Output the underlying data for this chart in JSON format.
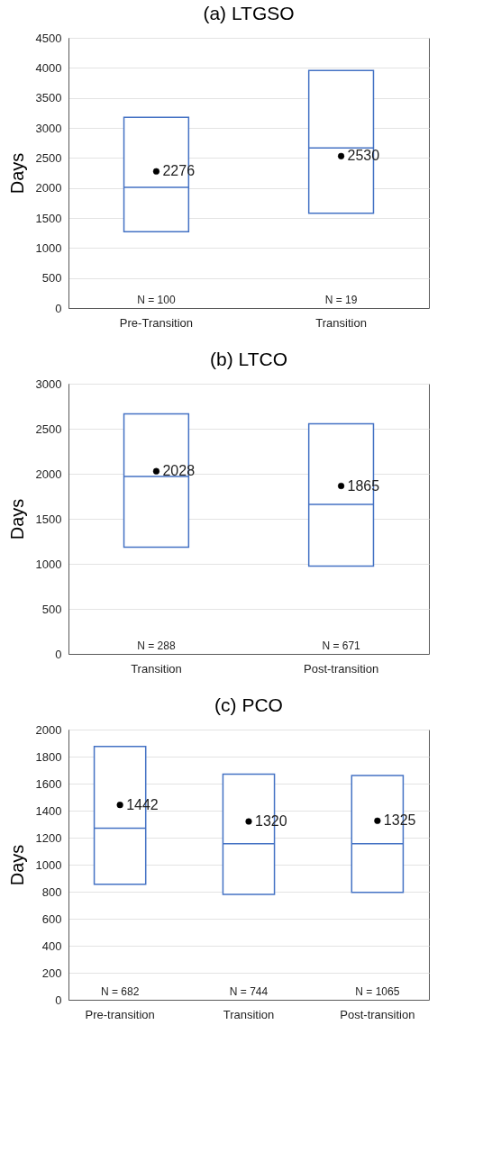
{
  "chart_data": [
    {
      "type": "box",
      "title": "(a) LTGSO",
      "ylabel": "Days",
      "categories": [
        "Pre-Transition",
        "Transition"
      ],
      "ylim": [
        0,
        4500
      ],
      "yticks": [
        0,
        500,
        1000,
        1500,
        2000,
        2500,
        3000,
        3500,
        4000,
        4500
      ],
      "grid": "y",
      "data_labels": true,
      "series": [
        {
          "type": "box",
          "color": "#4472c4",
          "boxes": [
            {
              "low": 1270,
              "q1": 1270,
              "median": 2010,
              "q3": 3175,
              "high": 3175
            },
            {
              "low": 1580,
              "q1": 1580,
              "median": 2665,
              "q3": 3955,
              "high": 3955
            }
          ]
        },
        {
          "type": "scatter",
          "color": "#000000",
          "x": [
            "Pre-Transition",
            "Transition"
          ],
          "values": [
            2276,
            2530
          ]
        }
      ],
      "annotations": [
        "N = 100",
        "N = 19"
      ]
    },
    {
      "type": "box",
      "title": "(b) LTCO",
      "ylabel": "Days",
      "categories": [
        "Transition",
        "Post-transition"
      ],
      "ylim": [
        0,
        3000
      ],
      "yticks": [
        0,
        500,
        1000,
        1500,
        2000,
        2500,
        3000
      ],
      "grid": "y",
      "data_labels": true,
      "series": [
        {
          "type": "box",
          "color": "#4472c4",
          "boxes": [
            {
              "low": 1185,
              "q1": 1185,
              "median": 1970,
              "q3": 2665,
              "high": 2665
            },
            {
              "low": 975,
              "q1": 975,
              "median": 1660,
              "q3": 2555,
              "high": 2555
            }
          ]
        },
        {
          "type": "scatter",
          "color": "#000000",
          "x": [
            "Transition",
            "Post-transition"
          ],
          "values": [
            2028,
            1865
          ]
        }
      ],
      "annotations": [
        "N = 288",
        "N = 671"
      ]
    },
    {
      "type": "box",
      "title": "(c) PCO",
      "ylabel": "Days",
      "categories": [
        "Pre-transition",
        "Transition",
        "Post-transition"
      ],
      "ylim": [
        0,
        2000
      ],
      "yticks": [
        0,
        200,
        400,
        600,
        800,
        1000,
        1200,
        1400,
        1600,
        1800,
        2000
      ],
      "grid": "y",
      "data_labels": true,
      "series": [
        {
          "type": "box",
          "color": "#4472c4",
          "boxes": [
            {
              "low": 855,
              "q1": 855,
              "median": 1270,
              "q3": 1875,
              "high": 1875
            },
            {
              "low": 780,
              "q1": 780,
              "median": 1155,
              "q3": 1670,
              "high": 1670
            },
            {
              "low": 795,
              "q1": 795,
              "median": 1155,
              "q3": 1660,
              "high": 1660
            }
          ]
        },
        {
          "type": "scatter",
          "color": "#000000",
          "x": [
            "Pre-transition",
            "Transition",
            "Post-transition"
          ],
          "values": [
            1442,
            1320,
            1325
          ]
        }
      ],
      "annotations": [
        "N = 682",
        "N = 744",
        "N = 1065"
      ]
    }
  ]
}
